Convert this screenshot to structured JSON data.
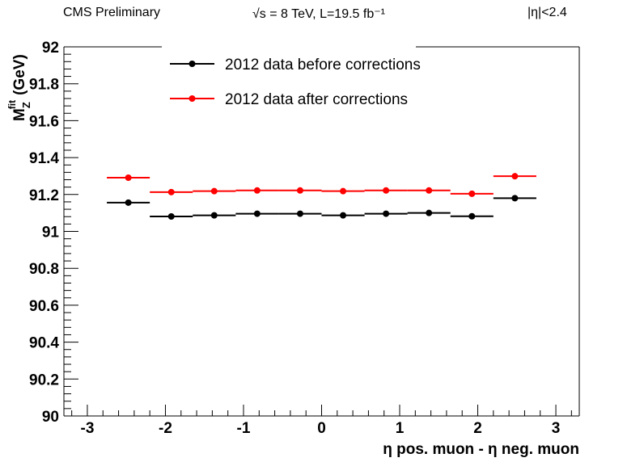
{
  "header": {
    "left": "CMS Preliminary",
    "center": "√s = 8 TeV, L=19.5 fb⁻¹",
    "right": "|η|<2.4"
  },
  "chart_data": {
    "type": "scatter",
    "title": "",
    "xlabel": "η pos. muon -  η neg. muon",
    "ylabel": "M_Z^fit (GeV)",
    "ylabel_main": "M",
    "ylabel_sub": "Z",
    "ylabel_sup": "fit",
    "ylabel_unit": "(GeV)",
    "xlim": [
      -3.3,
      3.3
    ],
    "ylim": [
      90,
      92
    ],
    "x_ticks": [
      -3,
      -2,
      -1,
      0,
      1,
      2,
      3
    ],
    "x_tick_labels": [
      "-3",
      "-2",
      "-1",
      "0",
      "1",
      "2",
      "3"
    ],
    "y_ticks": [
      90,
      90.2,
      90.4,
      90.6,
      90.8,
      91,
      91.2,
      91.4,
      91.6,
      91.8,
      92
    ],
    "y_tick_labels": [
      "90",
      "90.2",
      "90.4",
      "90.6",
      "90.8",
      "91",
      "91.2",
      "91.4",
      "91.6",
      "91.8",
      "92"
    ],
    "legend_position": "top",
    "grid": false,
    "series": [
      {
        "name": "2012 data before corrections",
        "color": "#000000",
        "x": [
          -2.475,
          -1.925,
          -1.375,
          -0.825,
          -0.275,
          0.275,
          0.825,
          1.375,
          1.925,
          2.475
        ],
        "x_err": [
          0.275,
          0.275,
          0.275,
          0.275,
          0.275,
          0.275,
          0.275,
          0.275,
          0.275,
          0.275
        ],
        "y": [
          91.156,
          91.081,
          91.087,
          91.096,
          91.096,
          91.087,
          91.096,
          91.1,
          91.082,
          91.18
        ]
      },
      {
        "name": "2012 data after corrections",
        "color": "#ff0000",
        "x": [
          -2.475,
          -1.925,
          -1.375,
          -0.825,
          -0.275,
          0.275,
          0.825,
          1.375,
          1.925,
          2.475
        ],
        "x_err": [
          0.275,
          0.275,
          0.275,
          0.275,
          0.275,
          0.275,
          0.275,
          0.275,
          0.275,
          0.275
        ],
        "y": [
          91.291,
          91.213,
          91.218,
          91.222,
          91.222,
          91.218,
          91.222,
          91.222,
          91.204,
          91.299
        ]
      }
    ]
  }
}
